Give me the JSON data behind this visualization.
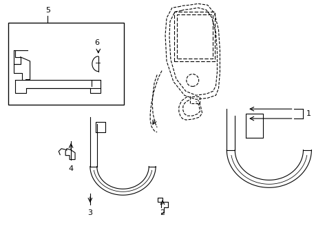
{
  "bg_color": "#ffffff",
  "line_color": "#000000",
  "line_width": 0.8,
  "fig_width": 4.89,
  "fig_height": 3.6,
  "dpi": 100
}
